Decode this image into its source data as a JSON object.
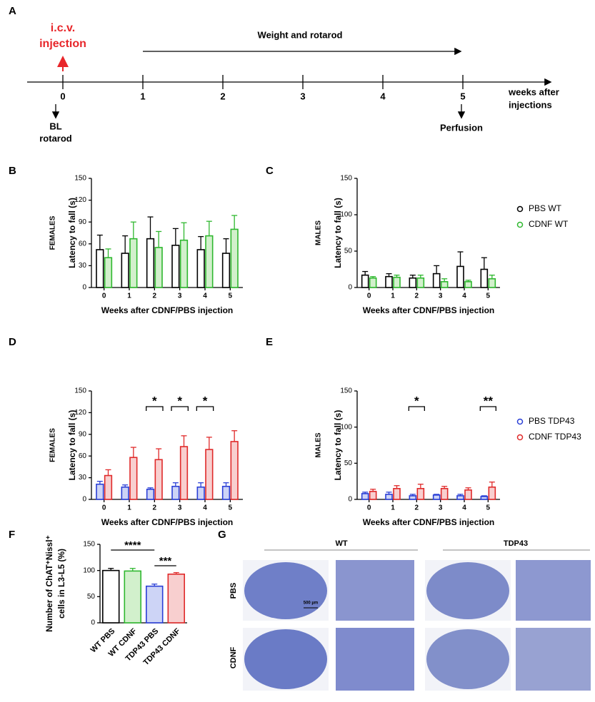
{
  "panel_labels": [
    "A",
    "B",
    "C",
    "D",
    "E",
    "F",
    "G"
  ],
  "panel_a": {
    "ticks": [
      0,
      1,
      2,
      3,
      4,
      5
    ],
    "injection": [
      "i.c.v.",
      "injection"
    ],
    "period": "Weight and rotarod",
    "axis_label": [
      "weeks after",
      "injections"
    ],
    "baseline": [
      "BL",
      "rotarod"
    ],
    "end": "Perfusion"
  },
  "chart_data": [
    {
      "type": "bar",
      "side_label": "FEMALES",
      "ylabel": "Latency to fall (s)",
      "xlabel": "Weeks after CDNF/PBS injection",
      "categories": [
        "0",
        "1",
        "2",
        "3",
        "4",
        "5"
      ],
      "ylim": [
        0,
        150
      ],
      "yticks": [
        0,
        30,
        60,
        90,
        120,
        150
      ],
      "series": [
        {
          "name": "PBS WT",
          "color": "#000000",
          "fill": "#ffffff",
          "values": [
            52,
            47,
            67,
            58,
            52,
            47
          ],
          "errors": [
            20,
            24,
            30,
            23,
            18,
            20
          ]
        },
        {
          "name": "CDNF WT",
          "color": "#2fb82f",
          "fill": "#d2f0cc",
          "values": [
            41,
            67,
            55,
            65,
            71,
            80
          ],
          "errors": [
            12,
            23,
            22,
            24,
            20,
            19
          ]
        }
      ]
    },
    {
      "type": "bar",
      "side_label": "MALES",
      "ylabel": "Latency to fall (s)",
      "xlabel": "Weeks after CDNF/PBS injection",
      "categories": [
        "0",
        "1",
        "2",
        "3",
        "4",
        "5"
      ],
      "ylim": [
        0,
        150
      ],
      "yticks": [
        0,
        50,
        100,
        150
      ],
      "legend": "right",
      "series": [
        {
          "name": "PBS WT",
          "color": "#000000",
          "fill": "#ffffff",
          "values": [
            17,
            15,
            13,
            19,
            29,
            25
          ],
          "errors": [
            5,
            4,
            4,
            11,
            20,
            16
          ]
        },
        {
          "name": "CDNF WT",
          "color": "#2fb82f",
          "fill": "#d2f0cc",
          "values": [
            13,
            14,
            13,
            8,
            8,
            12
          ],
          "errors": [
            2,
            3,
            4,
            4,
            2,
            5
          ]
        }
      ]
    },
    {
      "type": "bar",
      "side_label": "FEMALES",
      "ylabel": "Latency to fall (s)",
      "xlabel": "Weeks after CDNF/PBS injection",
      "categories": [
        "0",
        "1",
        "2",
        "3",
        "4",
        "5"
      ],
      "ylim": [
        0,
        150
      ],
      "yticks": [
        0,
        30,
        60,
        90,
        120,
        150
      ],
      "annotations": [
        {
          "text": "*",
          "category": 2
        },
        {
          "text": "*",
          "category": 3
        },
        {
          "text": "*",
          "category": 4
        }
      ],
      "series": [
        {
          "name": "PBS TDP43",
          "color": "#2a3fd6",
          "fill": "#cdd4f6",
          "values": [
            21,
            17,
            14,
            18,
            17,
            18
          ],
          "errors": [
            4,
            3,
            2,
            5,
            6,
            5
          ]
        },
        {
          "name": "CDNF TDP43",
          "color": "#e02a2a",
          "fill": "#f8cfcf",
          "values": [
            33,
            58,
            55,
            73,
            69,
            80
          ],
          "errors": [
            8,
            14,
            15,
            15,
            17,
            15
          ]
        }
      ]
    },
    {
      "type": "bar",
      "side_label": "MALES",
      "ylabel": "Latency to fall (s)",
      "xlabel": "Weeks after CDNF/PBS injection",
      "categories": [
        "0",
        "1",
        "2",
        "3",
        "4",
        "5"
      ],
      "ylim": [
        0,
        150
      ],
      "yticks": [
        0,
        50,
        100,
        150
      ],
      "legend": "right",
      "annotations": [
        {
          "text": "*",
          "category": 2
        },
        {
          "text": "**",
          "category": 5
        }
      ],
      "series": [
        {
          "name": "PBS TDP43",
          "color": "#2a3fd6",
          "fill": "#cdd4f6",
          "values": [
            8,
            7,
            5,
            6,
            5,
            4
          ],
          "errors": [
            2,
            3,
            2,
            1,
            2,
            1
          ]
        },
        {
          "name": "CDNF TDP43",
          "color": "#e02a2a",
          "fill": "#f8cfcf",
          "values": [
            11,
            15,
            15,
            15,
            13,
            17
          ],
          "errors": [
            3,
            4,
            6,
            3,
            3,
            7
          ]
        }
      ]
    },
    {
      "type": "colorbar",
      "ylabel": [
        "Number of ChAT⁺Nissl⁺",
        "cells in L3-L5 (%)"
      ],
      "categories": [
        "WT PBS",
        "WT CDNF",
        "TDP43 PBS",
        "TDP43 CDNF"
      ],
      "values": [
        100,
        99,
        70,
        93
      ],
      "errors": [
        4,
        5,
        4,
        3
      ],
      "colors": [
        "#000000",
        "#2fb82f",
        "#2a3fd6",
        "#e02a2a"
      ],
      "fills": [
        "#ffffff",
        "#d2f0cc",
        "#cdd4f6",
        "#f8cfcf"
      ],
      "ylim": [
        0,
        150
      ],
      "yticks": [
        0,
        50,
        100,
        150
      ],
      "annotations": [
        {
          "text": "****",
          "from": 0,
          "to": 2
        },
        {
          "text": "***",
          "from": 2,
          "to": 3
        }
      ]
    }
  ],
  "panel_g": {
    "columns": [
      "WT",
      "TDP43"
    ],
    "rows": [
      "PBS",
      "CDNF"
    ],
    "scale": "500 µm"
  }
}
